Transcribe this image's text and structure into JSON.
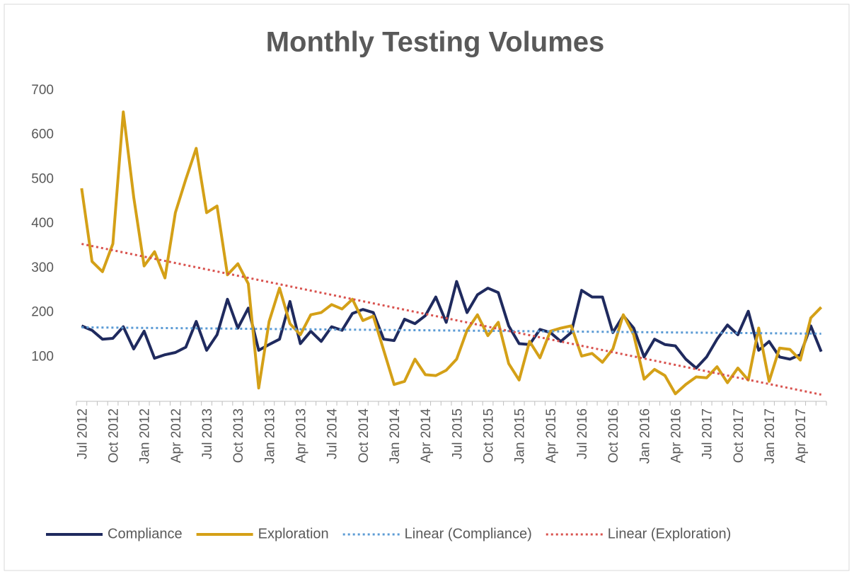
{
  "chart_data": {
    "type": "line",
    "title": "Monthly Testing Volumes",
    "categories": [
      "Jul 2012",
      null,
      null,
      "Oct 2012",
      null,
      null,
      "Jan 2012",
      null,
      null,
      "Apr 2012",
      null,
      null,
      "Jul 2013",
      null,
      null,
      "Oct 2013",
      null,
      null,
      "Jan 2013",
      null,
      null,
      "Apr 2013",
      null,
      null,
      "Jul 2014",
      null,
      null,
      "Oct 2014",
      null,
      null,
      "Jan 2014",
      null,
      null,
      "Apr 2014",
      null,
      null,
      "Jul 2015",
      null,
      null,
      "Oct 2015",
      null,
      null,
      "Jan 2015",
      null,
      null,
      "Apr 2015",
      null,
      null,
      "Jul 2016",
      null,
      null,
      "Oct 2016",
      null,
      null,
      "Jan 2016",
      null,
      null,
      "Apr 2016",
      null,
      null,
      "Jul 2017",
      null,
      null,
      "Oct 2017",
      null,
      null,
      "Jan 2017",
      null,
      null,
      "Apr 2017",
      null,
      null
    ],
    "series": [
      {
        "name": "Compliance",
        "color": "#1f2a5e",
        "values": [
          170,
          160,
          140,
          142,
          168,
          118,
          158,
          97,
          105,
          110,
          122,
          180,
          115,
          150,
          230,
          165,
          210,
          115,
          128,
          140,
          225,
          130,
          158,
          135,
          168,
          160,
          198,
          207,
          200,
          140,
          137,
          185,
          175,
          193,
          235,
          178,
          270,
          200,
          240,
          255,
          245,
          170,
          130,
          128,
          162,
          155,
          135,
          155,
          250,
          235,
          235,
          155,
          193,
          165,
          100,
          140,
          128,
          125,
          95,
          75,
          100,
          140,
          172,
          150,
          203,
          115,
          135,
          100,
          95,
          105,
          170,
          112
        ]
      },
      {
        "name": "Exploration",
        "color": "#d4a017",
        "values": [
          480,
          315,
          292,
          355,
          652,
          460,
          305,
          337,
          278,
          425,
          500,
          570,
          425,
          440,
          285,
          310,
          265,
          30,
          180,
          255,
          175,
          150,
          195,
          200,
          218,
          208,
          230,
          182,
          192,
          115,
          38,
          45,
          95,
          60,
          58,
          70,
          95,
          160,
          195,
          148,
          178,
          85,
          48,
          135,
          98,
          158,
          165,
          170,
          102,
          108,
          88,
          118,
          195,
          150,
          50,
          72,
          58,
          17,
          38,
          55,
          53,
          78,
          42,
          75,
          48,
          165,
          45,
          120,
          117,
          93,
          188,
          212
        ]
      }
    ],
    "trendlines": [
      {
        "name": "Linear (Compliance)",
        "series": 0,
        "color": "#5b9bd5"
      },
      {
        "name": "Linear (Exploration)",
        "series": 1,
        "color": "#d9534f"
      }
    ],
    "ylim": [
      0,
      700
    ],
    "yticks": [
      100,
      200,
      300,
      400,
      500,
      600,
      700
    ],
    "grid": false
  }
}
